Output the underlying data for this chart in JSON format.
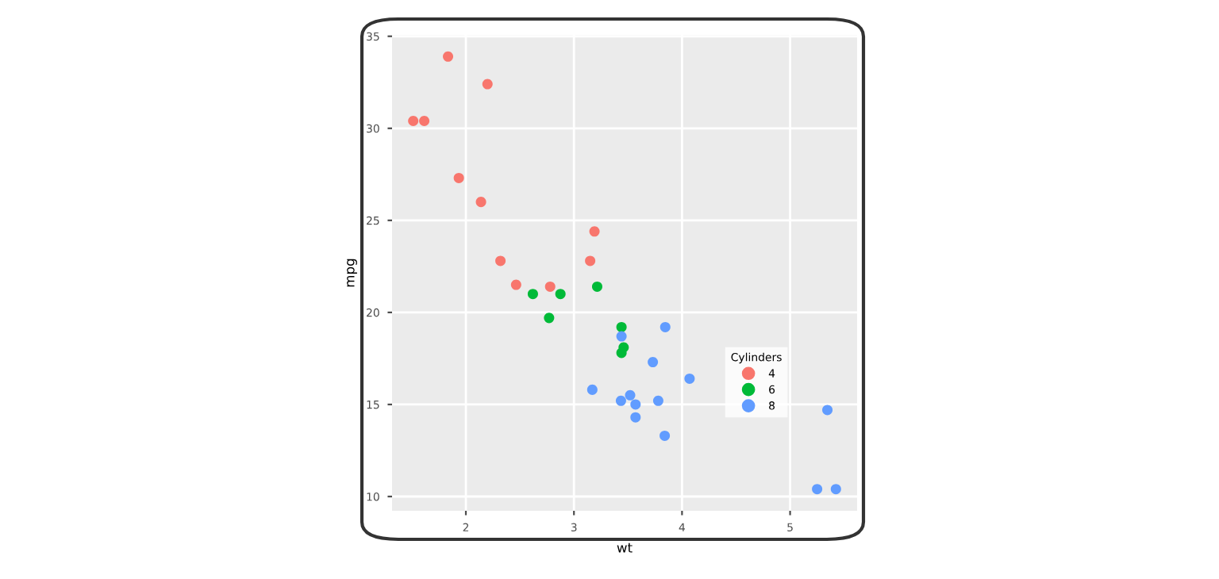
{
  "chart_data": {
    "type": "scatter",
    "xlabel": "wt",
    "ylabel": "mpg",
    "legend_title": "Cylinders",
    "legend": "right",
    "grid": true,
    "marker": "circle",
    "xlim": [
      1.317,
      5.62
    ],
    "ylim": [
      9.225,
      35.075
    ],
    "xticks": [
      2,
      3,
      4,
      5
    ],
    "yticks": [
      10,
      15,
      20,
      25,
      30,
      35
    ],
    "series": [
      {
        "name": "4",
        "color": "#f8766d",
        "x": [
          2.32,
          3.19,
          3.15,
          2.2,
          1.615,
          1.835,
          2.465,
          1.935,
          2.14,
          1.513,
          2.78
        ],
        "values": [
          22.8,
          24.4,
          22.8,
          32.4,
          30.4,
          33.9,
          21.5,
          27.3,
          26.0,
          30.4,
          21.4
        ]
      },
      {
        "name": "6",
        "color": "#00ba38",
        "x": [
          2.62,
          2.875,
          3.215,
          3.46,
          3.44,
          3.44,
          2.77
        ],
        "values": [
          21.0,
          21.0,
          21.4,
          18.1,
          19.2,
          17.8,
          19.7
        ]
      },
      {
        "name": "8",
        "color": "#619cff",
        "x": [
          3.44,
          3.57,
          4.07,
          3.73,
          3.78,
          5.25,
          5.424,
          5.345,
          3.52,
          3.435,
          3.84,
          3.845,
          3.17,
          3.57
        ],
        "values": [
          18.7,
          14.3,
          16.4,
          17.3,
          15.2,
          10.4,
          10.4,
          14.7,
          15.5,
          15.2,
          13.3,
          19.2,
          15.8,
          15.0
        ]
      }
    ]
  }
}
